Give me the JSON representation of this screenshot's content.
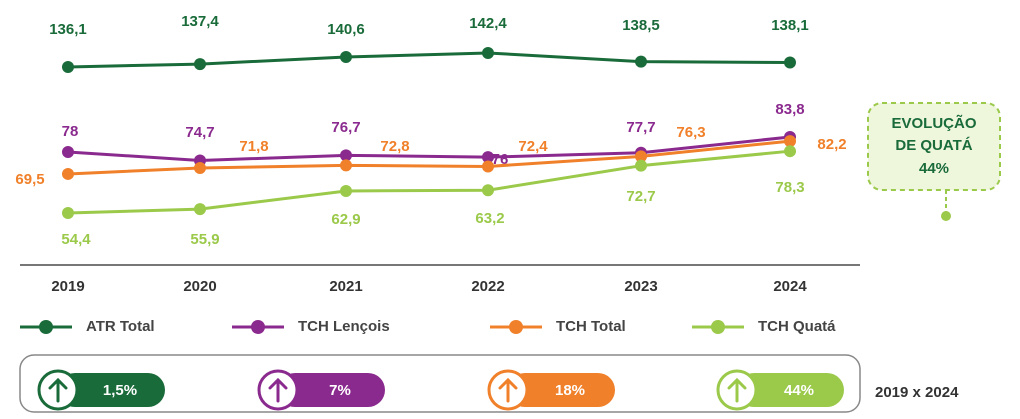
{
  "chart_data": {
    "type": "line",
    "categories": [
      "2019",
      "2020",
      "2021",
      "2022",
      "2023",
      "2024"
    ],
    "series": [
      {
        "name": "ATR Total",
        "color": "#1a6b3a",
        "values": [
          136.1,
          137.4,
          140.6,
          142.4,
          138.5,
          138.1
        ],
        "value_labels": [
          "136,1",
          "137,4",
          "140,6",
          "142,4",
          "138,5",
          "138,1"
        ]
      },
      {
        "name": "TCH Lençois",
        "color": "#8b2a8e",
        "values": [
          78,
          74.7,
          76.7,
          76,
          77.7,
          83.8
        ],
        "value_labels": [
          "78",
          "74,7",
          "76,7",
          "76",
          "77,7",
          "83,8"
        ]
      },
      {
        "name": "TCH Total",
        "color": "#f0802a",
        "values": [
          69.5,
          71.8,
          72.8,
          72.4,
          76.3,
          82.2
        ],
        "value_labels": [
          "69,5",
          "71,8",
          "72,8",
          "72,4",
          "76,3",
          "82,2"
        ]
      },
      {
        "name": "TCH Quatá",
        "color": "#9bc94a",
        "values": [
          54.4,
          55.9,
          62.9,
          63.2,
          72.7,
          78.3
        ],
        "value_labels": [
          "54,4",
          "55,9",
          "62,9",
          "63,2",
          "72,7",
          "78,3"
        ]
      }
    ],
    "callout": [
      "EVOLUÇÃO",
      "DE QUATÁ",
      "44%"
    ],
    "badges": [
      "1,5%",
      "7%",
      "18%",
      "44%"
    ],
    "period": "2019 x 2024"
  }
}
